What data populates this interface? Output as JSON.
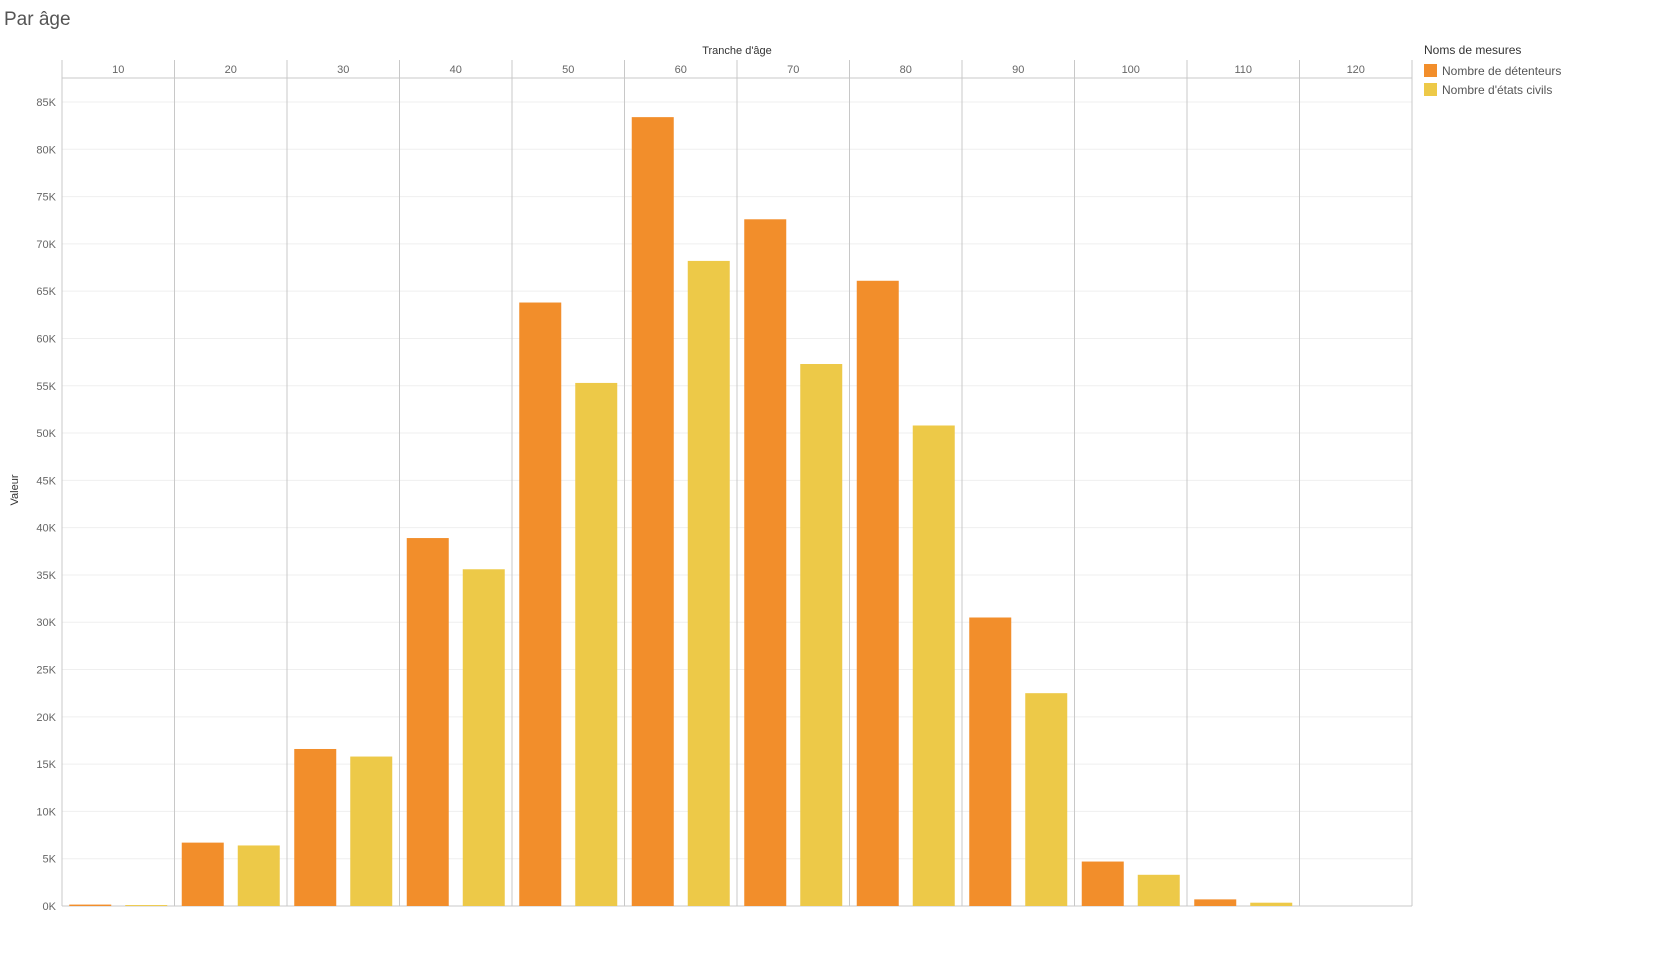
{
  "title": "Par âge",
  "chart_data": {
    "type": "bar",
    "title": "Par âge",
    "xlabel": "Tranche d'âge",
    "ylabel": "Valeur",
    "categories": [
      "10",
      "20",
      "30",
      "40",
      "50",
      "60",
      "70",
      "80",
      "90",
      "100",
      "110",
      "120"
    ],
    "series": [
      {
        "name": "Nombre de détenteurs",
        "color": "#f28e2b",
        "values": [
          150,
          6700,
          16600,
          38900,
          63800,
          83400,
          72600,
          66100,
          30500,
          4700,
          700,
          0
        ]
      },
      {
        "name": "Nombre d'états civils",
        "color": "#edc948",
        "values": [
          100,
          6400,
          15800,
          35600,
          55300,
          68200,
          57300,
          50800,
          22500,
          3300,
          350,
          0
        ]
      }
    ],
    "yticks": [
      0,
      5000,
      10000,
      15000,
      20000,
      25000,
      30000,
      35000,
      40000,
      45000,
      50000,
      55000,
      60000,
      65000,
      70000,
      75000,
      80000,
      85000
    ],
    "ytick_labels": [
      "0K",
      "5K",
      "10K",
      "15K",
      "20K",
      "25K",
      "30K",
      "35K",
      "40K",
      "45K",
      "50K",
      "55K",
      "60K",
      "65K",
      "70K",
      "75K",
      "80K",
      "85K"
    ],
    "ylim": [
      0,
      85000
    ],
    "grid": true,
    "legend": {
      "title": "Noms de mesures",
      "placement": "right",
      "entries": [
        "Nombre de détenteurs",
        "Nombre d'états civils"
      ]
    }
  }
}
